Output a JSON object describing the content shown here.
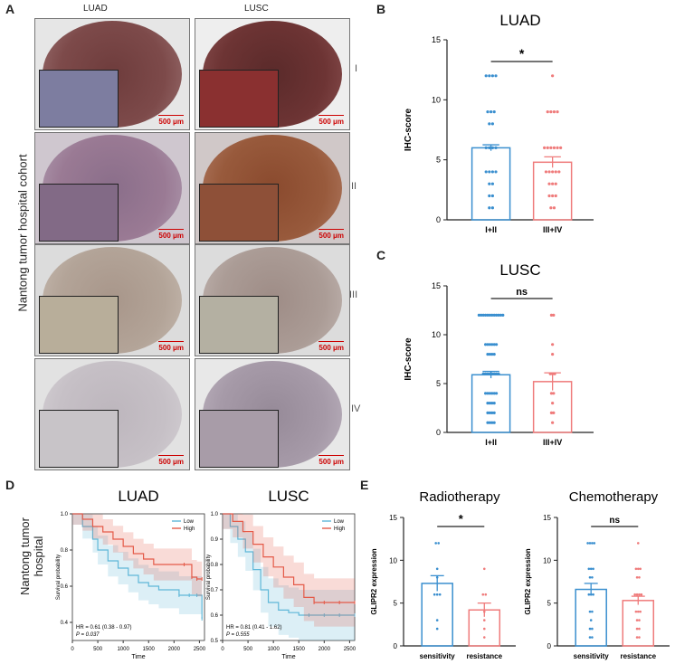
{
  "panels": {
    "A": "A",
    "B": "B",
    "C": "C",
    "D": "D",
    "E": "E"
  },
  "panelA": {
    "col_luad": "LUAD",
    "col_lusc": "LUSC",
    "row_label": "Nantong tumor hospital cohort",
    "stages": [
      "I",
      "II",
      "III",
      "IV"
    ],
    "scale_bar": "500 μm",
    "colors": {
      "I": "#7d4a4a",
      "II": "#8e5a44",
      "III": "#a89a8e",
      "IV": "#b9b2bc"
    }
  },
  "chart_data": [
    {
      "id": "B",
      "type": "scatter",
      "title": "LUAD",
      "ylabel": "IHC-score",
      "categories": [
        "I+II",
        "III+IV"
      ],
      "ylim": [
        0,
        15
      ],
      "yticks": [
        0,
        5,
        10,
        15
      ],
      "means": [
        6.0,
        4.8
      ],
      "sem": [
        0.25,
        0.45
      ],
      "significance": "*",
      "points": [
        [
          1,
          1,
          2,
          2,
          3,
          3,
          4,
          4,
          4,
          4,
          6,
          6,
          6,
          6,
          8,
          8,
          9,
          9,
          9,
          12,
          12,
          12,
          12
        ],
        [
          1,
          1,
          2,
          2,
          2,
          3,
          3,
          3,
          4,
          4,
          4,
          4,
          4,
          6,
          6,
          6,
          6,
          6,
          6,
          9,
          9,
          9,
          9,
          12
        ]
      ]
    },
    {
      "id": "C",
      "type": "scatter",
      "title": "LUSC",
      "ylabel": "IHC-score",
      "categories": [
        "I+II",
        "III+IV"
      ],
      "ylim": [
        0,
        15
      ],
      "yticks": [
        0,
        5,
        10,
        15
      ],
      "means": [
        5.9,
        5.2
      ],
      "sem": [
        0.35,
        0.9
      ],
      "significance": "ns",
      "points": [
        [
          1,
          1,
          1,
          1,
          2,
          2,
          2,
          2,
          3,
          3,
          3,
          3,
          4,
          4,
          4,
          4,
          4,
          4,
          6,
          6,
          6,
          6,
          6,
          6,
          6,
          6,
          8,
          8,
          8,
          8,
          9,
          9,
          9,
          9,
          9,
          9,
          12,
          12,
          12,
          12,
          12,
          12,
          12,
          12,
          12,
          12,
          12,
          12
        ],
        [
          1,
          2,
          2,
          3,
          4,
          4,
          6,
          6,
          6,
          8,
          9,
          12,
          12
        ]
      ]
    },
    {
      "id": "D1",
      "type": "line",
      "title": "LUAD",
      "xlabel": "Time",
      "ylabel": "Survival probability",
      "xlim": [
        0,
        2600
      ],
      "ylim": [
        0.3,
        1.0
      ],
      "xticks": [
        0,
        500,
        1000,
        1500,
        2000,
        2500
      ],
      "yticks": [
        0.4,
        0.6,
        0.8,
        1.0
      ],
      "series": [
        {
          "name": "Low",
          "color": "#5fb7d8",
          "x": [
            0,
            200,
            400,
            500,
            700,
            900,
            1100,
            1300,
            1500,
            1700,
            1900,
            2100,
            2300,
            2450,
            2550
          ],
          "y": [
            1.0,
            0.93,
            0.86,
            0.8,
            0.74,
            0.7,
            0.66,
            0.62,
            0.6,
            0.58,
            0.58,
            0.55,
            0.55,
            0.55,
            0.42
          ]
        },
        {
          "name": "High",
          "color": "#e45a48",
          "x": [
            0,
            200,
            400,
            600,
            800,
            1000,
            1200,
            1400,
            1600,
            1800,
            2000,
            2200,
            2350,
            2450,
            2550
          ],
          "y": [
            1.0,
            0.97,
            0.93,
            0.9,
            0.86,
            0.82,
            0.78,
            0.75,
            0.72,
            0.72,
            0.72,
            0.72,
            0.65,
            0.64,
            0.64
          ]
        }
      ],
      "annotation_hr": "HR = 0.61 (0.38 - 0.97)",
      "annotation_p": "P = 0.037"
    },
    {
      "id": "D2",
      "type": "line",
      "title": "LUSC",
      "xlabel": "Time",
      "ylabel": "Survival probability",
      "xlim": [
        0,
        2600
      ],
      "ylim": [
        0.5,
        1.0
      ],
      "xticks": [
        0,
        500,
        1000,
        1500,
        2000,
        2500
      ],
      "yticks": [
        0.5,
        0.6,
        0.7,
        0.8,
        0.9,
        1.0
      ],
      "series": [
        {
          "name": "Low",
          "color": "#5fb7d8",
          "x": [
            0,
            150,
            300,
            450,
            600,
            750,
            900,
            1100,
            1300,
            1500,
            1700,
            2000,
            2300,
            2600
          ],
          "y": [
            1.0,
            0.95,
            0.9,
            0.85,
            0.78,
            0.7,
            0.65,
            0.62,
            0.61,
            0.6,
            0.6,
            0.6,
            0.6,
            0.6
          ]
        },
        {
          "name": "High",
          "color": "#e45a48",
          "x": [
            0,
            200,
            400,
            600,
            800,
            1000,
            1200,
            1400,
            1600,
            1800,
            2000,
            2300,
            2600
          ],
          "y": [
            1.0,
            0.97,
            0.93,
            0.88,
            0.83,
            0.79,
            0.75,
            0.72,
            0.67,
            0.65,
            0.65,
            0.65,
            0.65
          ]
        }
      ],
      "annotation_hr": "HR = 0.81 (0.41 - 1.62)",
      "annotation_p": "P = 0.555"
    },
    {
      "id": "E1",
      "type": "scatter",
      "title": "Radiotherapy",
      "ylabel": "GLIPR2 expression",
      "categories": [
        "sensitivity",
        "resistance"
      ],
      "ylim": [
        0,
        15
      ],
      "yticks": [
        0,
        5,
        10,
        15
      ],
      "means": [
        7.3,
        4.2
      ],
      "sem": [
        0.9,
        0.8
      ],
      "significance": "*",
      "points": [
        [
          2,
          3,
          6,
          6,
          6,
          8,
          9,
          12,
          12
        ],
        [
          1,
          2,
          3,
          4,
          6,
          6,
          9
        ]
      ]
    },
    {
      "id": "E2",
      "type": "scatter",
      "title": "Chemotherapy",
      "ylabel": "GLIPR2 expression",
      "categories": [
        "sensitivity",
        "resistance"
      ],
      "ylim": [
        0,
        15
      ],
      "yticks": [
        0,
        5,
        10,
        15
      ],
      "means": [
        6.6,
        5.3
      ],
      "sem": [
        0.7,
        0.5
      ],
      "significance": "ns",
      "points": [
        [
          1,
          1,
          2,
          2,
          3,
          4,
          4,
          6,
          6,
          6,
          8,
          8,
          9,
          9,
          9,
          12,
          12,
          12,
          12
        ],
        [
          1,
          1,
          2,
          2,
          3,
          3,
          4,
          4,
          4,
          6,
          6,
          6,
          6,
          8,
          8,
          9,
          9,
          9,
          12
        ]
      ]
    }
  ],
  "panelD": {
    "row_label": "Nantong tumor hospital",
    "legend_low": "Low",
    "legend_high": "High"
  }
}
